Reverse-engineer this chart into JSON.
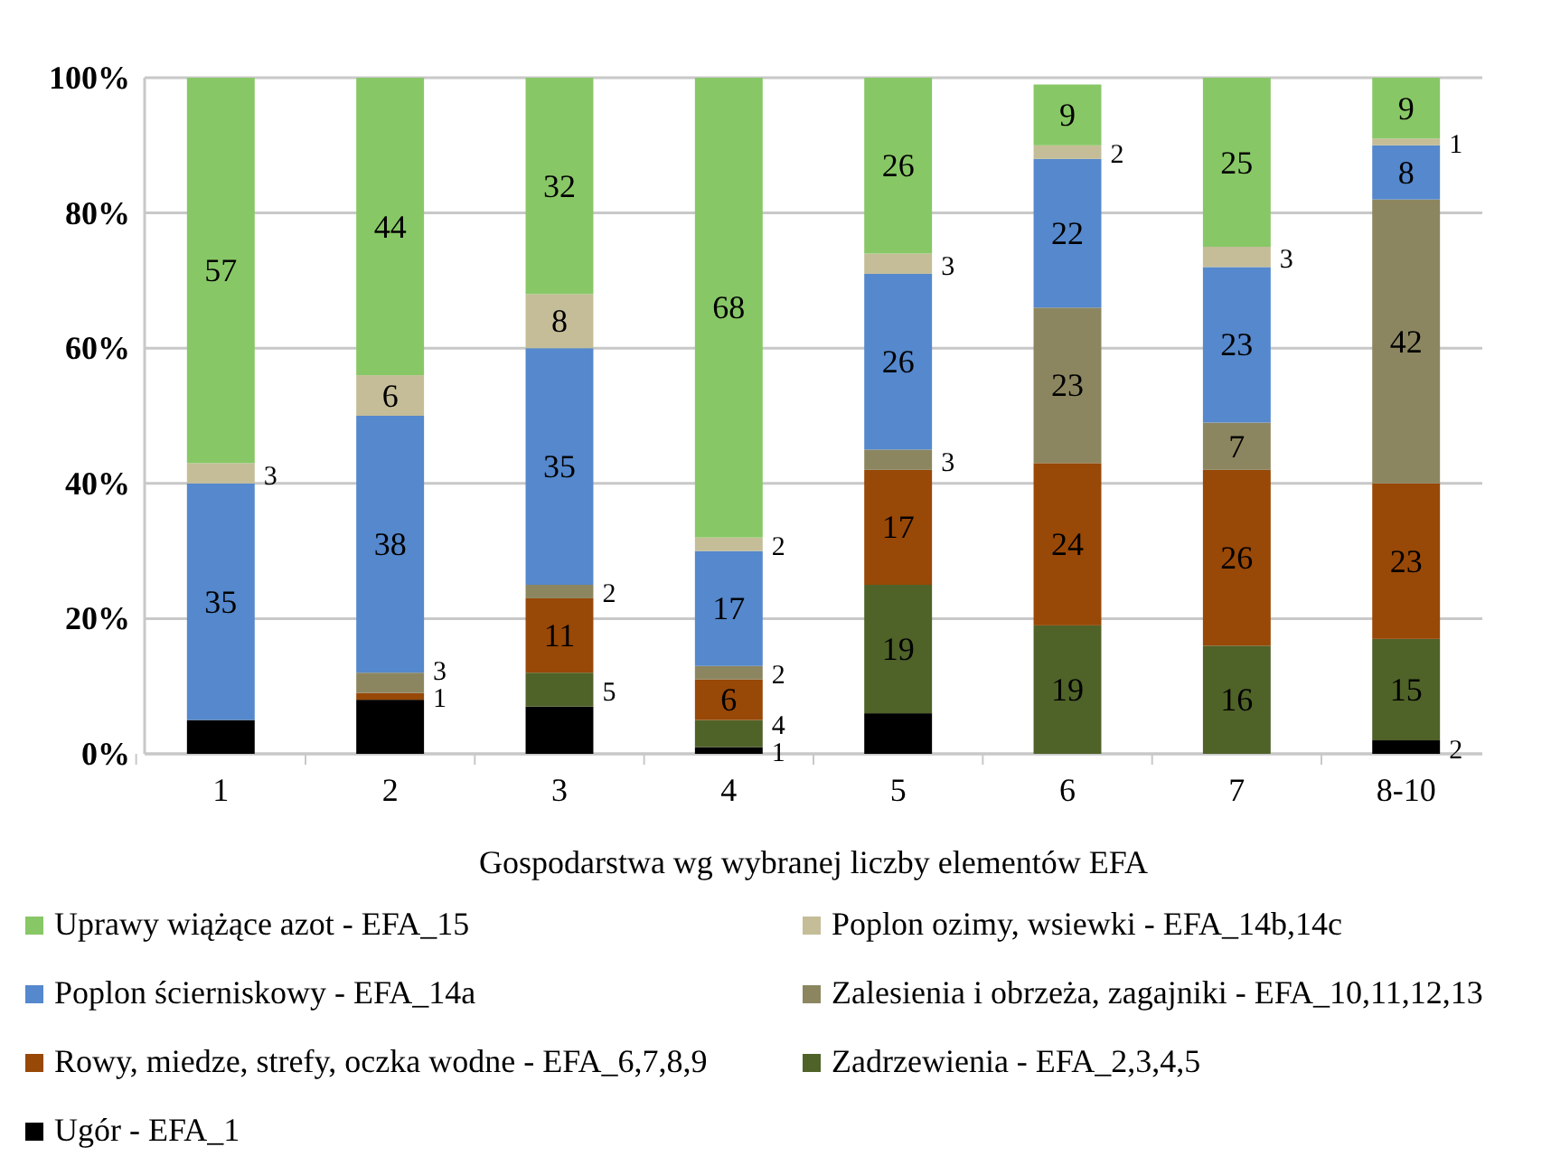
{
  "chart_data": {
    "type": "bar",
    "stacked": true,
    "xlabel": "Gospodarstwa wg wybranej liczby elementów EFA",
    "categories": [
      "1",
      "2",
      "3",
      "4",
      "5",
      "6",
      "7",
      "8-10"
    ],
    "ylim": [
      0,
      100
    ],
    "yticks": [
      {
        "value": 0,
        "label": "0%"
      },
      {
        "value": 20,
        "label": "20%"
      },
      {
        "value": 40,
        "label": "40%"
      },
      {
        "value": 60,
        "label": "60%"
      },
      {
        "value": 80,
        "label": "80%"
      },
      {
        "value": 100,
        "label": "100%"
      }
    ],
    "grid": "y",
    "legend": "bottom",
    "series": [
      {
        "name": "Ugór - EFA_1",
        "color": "#000000",
        "values": [
          5,
          8,
          7,
          1,
          6,
          null,
          null,
          2
        ],
        "value_labels": [
          null,
          null,
          null,
          "1",
          null,
          null,
          null,
          "2"
        ]
      },
      {
        "name": "Zadrzewienia - EFA_2,3,4,5",
        "color": "#4f6228",
        "values": [
          null,
          null,
          5,
          4,
          19,
          19,
          16,
          15
        ],
        "value_labels": [
          null,
          null,
          "5",
          "4",
          "19",
          "19",
          "16",
          "15"
        ]
      },
      {
        "name": "Rowy, miedze, strefy, oczka wodne - EFA_6,7,8,9",
        "color": "#984807",
        "values": [
          null,
          1,
          11,
          6,
          17,
          24,
          26,
          23
        ],
        "value_labels": [
          null,
          "1",
          "11",
          "6",
          "17",
          "24",
          "26",
          "23"
        ]
      },
      {
        "name": "Zalesienia i obrzeża, zagajniki - EFA_10,11,12,13",
        "color": "#8c8660",
        "values": [
          null,
          3,
          2,
          2,
          3,
          23,
          7,
          42
        ],
        "value_labels": [
          null,
          "3",
          "2",
          "2",
          "3",
          "23",
          "7",
          "42"
        ]
      },
      {
        "name": "Poplon ścierniskowy - EFA_14a",
        "color": "#5588cc",
        "values": [
          35,
          38,
          35,
          17,
          26,
          22,
          23,
          8
        ],
        "value_labels": [
          "35",
          "38",
          "35",
          "17",
          "26",
          "22",
          "23",
          "8"
        ]
      },
      {
        "name": "Poplon ozimy, wsiewki - EFA_14b,14c",
        "color": "#c4bd97",
        "values": [
          3,
          6,
          8,
          2,
          3,
          2,
          3,
          1
        ],
        "value_labels": [
          "3",
          "6",
          "8",
          "2",
          "3",
          "2",
          "3",
          "1"
        ]
      },
      {
        "name": "Uprawy wiążące azot - EFA_15",
        "color": "#88c766",
        "values": [
          57,
          44,
          32,
          68,
          26,
          9,
          25,
          9
        ],
        "value_labels": [
          "57",
          "44",
          "32",
          "68",
          "26",
          "9",
          "25",
          "9"
        ]
      }
    ]
  }
}
